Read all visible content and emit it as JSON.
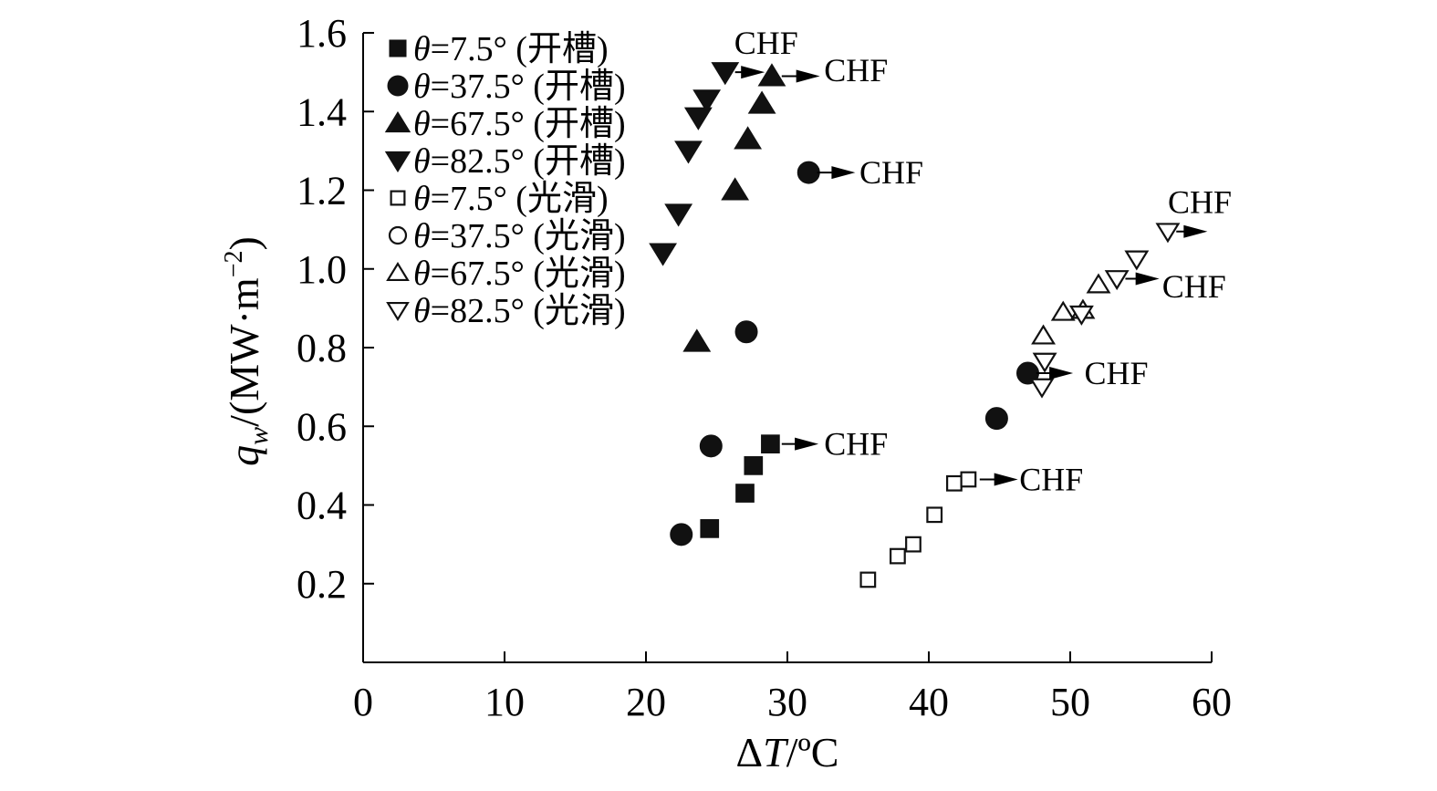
{
  "chart_data": {
    "type": "scatter",
    "xlabel_parts": [
      "Δ",
      "T",
      "/ºC"
    ],
    "ylabel_parts": [
      "q",
      "w",
      "/(MW·m",
      "−2",
      ")"
    ],
    "xlim": [
      0,
      60
    ],
    "ylim": [
      0,
      1.6
    ],
    "xticks": [
      0,
      10,
      20,
      30,
      40,
      50,
      60
    ],
    "yticks": [
      0.2,
      0.4,
      0.6,
      0.8,
      1.0,
      1.2,
      1.4,
      1.6
    ],
    "xtick_labels": [
      "0",
      "10",
      "20",
      "30",
      "40",
      "50",
      "60"
    ],
    "ytick_labels": [
      "0.2",
      "0.4",
      "0.6",
      "0.8",
      "1.0",
      "1.2",
      "1.4",
      "1.6"
    ],
    "grid": false,
    "legend_position": "top-left",
    "series": [
      {
        "name": "θ=7.5° (开槽)",
        "label_theta": "θ",
        "label_rest": "=7.5° (开槽)",
        "marker": "square",
        "filled": true,
        "points": [
          [
            24.5,
            0.34
          ],
          [
            27.0,
            0.43
          ],
          [
            27.6,
            0.5
          ],
          [
            28.8,
            0.555
          ]
        ]
      },
      {
        "name": "θ=37.5° (开槽)",
        "label_theta": "θ",
        "label_rest": "=37.5° (开槽)",
        "marker": "circle",
        "filled": true,
        "points": [
          [
            22.5,
            0.325
          ],
          [
            24.6,
            0.55
          ],
          [
            27.1,
            0.84
          ],
          [
            31.5,
            1.245
          ],
          [
            44.8,
            0.62
          ],
          [
            47.0,
            0.735
          ]
        ]
      },
      {
        "name": "θ=67.5° (开槽)",
        "label_theta": "θ",
        "label_rest": "=67.5° (开槽)",
        "marker": "triangle-up",
        "filled": true,
        "points": [
          [
            23.6,
            0.815
          ],
          [
            26.3,
            1.2
          ],
          [
            27.2,
            1.33
          ],
          [
            28.2,
            1.42
          ],
          [
            28.9,
            1.49
          ]
        ]
      },
      {
        "name": "θ=82.5° (开槽)",
        "label_theta": "θ",
        "label_rest": "=82.5° (开槽)",
        "marker": "triangle-down",
        "filled": true,
        "points": [
          [
            21.2,
            1.04
          ],
          [
            22.3,
            1.14
          ],
          [
            23.0,
            1.3
          ],
          [
            23.7,
            1.385
          ],
          [
            24.3,
            1.43
          ],
          [
            25.6,
            1.5
          ]
        ]
      },
      {
        "name": "θ=7.5° (光滑)",
        "label_theta": "θ",
        "label_rest": "=7.5° (光滑)",
        "marker": "square",
        "filled": false,
        "points": [
          [
            35.7,
            0.21
          ],
          [
            37.8,
            0.27
          ],
          [
            38.9,
            0.3
          ],
          [
            40.4,
            0.375
          ],
          [
            41.8,
            0.455
          ],
          [
            42.8,
            0.465
          ]
        ]
      },
      {
        "name": "θ=37.5° (光滑)",
        "label_theta": "θ",
        "label_rest": "=37.5° (光滑)",
        "marker": "circle",
        "filled": false,
        "points": []
      },
      {
        "name": "θ=67.5° (光滑)",
        "label_theta": "θ",
        "label_rest": "=67.5° (光滑)",
        "marker": "triangle-up",
        "filled": false,
        "points": [
          [
            48.1,
            0.83
          ],
          [
            49.5,
            0.89
          ],
          [
            50.9,
            0.895
          ],
          [
            52.0,
            0.96
          ]
        ]
      },
      {
        "name": "θ=82.5° (光滑)",
        "label_theta": "θ",
        "label_rest": "=82.5° (光滑)",
        "marker": "triangle-down",
        "filled": false,
        "points": [
          [
            48.0,
            0.7
          ],
          [
            48.2,
            0.765
          ],
          [
            50.8,
            0.885
          ],
          [
            53.3,
            0.975
          ],
          [
            54.7,
            1.025
          ],
          [
            56.9,
            1.095
          ]
        ]
      }
    ],
    "annotations": [
      {
        "text": "CHF",
        "arrow_from": [
          29.6,
          0.555
        ],
        "arrow_to": [
          32.2,
          0.555
        ],
        "text_at": [
          32.6,
          0.555
        ],
        "anchor": "start"
      },
      {
        "text": "CHF",
        "arrow_from": [
          32.1,
          1.245
        ],
        "arrow_to": [
          34.8,
          1.245
        ],
        "text_at": [
          35.1,
          1.245
        ],
        "anchor": "start"
      },
      {
        "text": "CHF",
        "arrow_from": [
          29.6,
          1.49
        ],
        "arrow_to": [
          32.3,
          1.49
        ],
        "text_at": [
          32.6,
          1.505
        ],
        "anchor": "start"
      },
      {
        "text": "CHF",
        "arrow_from": [
          26.3,
          1.5
        ],
        "arrow_to": [
          28.4,
          1.5
        ],
        "text_at": [
          28.5,
          1.575
        ],
        "anchor": "middle"
      },
      {
        "text": "CHF",
        "arrow_from": [
          43.6,
          0.465
        ],
        "arrow_to": [
          46.3,
          0.465
        ],
        "text_at": [
          46.4,
          0.465
        ],
        "anchor": "start"
      },
      {
        "text": "CHF",
        "arrow_from": [
          47.6,
          0.735
        ],
        "arrow_to": [
          50.2,
          0.735
        ],
        "text_at": [
          51.0,
          0.735
        ],
        "anchor": "start"
      },
      {
        "text": "CHF",
        "arrow_from": [
          53.9,
          0.975
        ],
        "arrow_to": [
          56.3,
          0.975
        ],
        "text_at": [
          56.5,
          0.955
        ],
        "anchor": "start"
      },
      {
        "text": "CHF",
        "arrow_from": [
          57.5,
          1.095
        ],
        "arrow_to": [
          59.7,
          1.095
        ],
        "text_at": [
          56.9,
          1.17
        ],
        "anchor": "start"
      }
    ]
  }
}
